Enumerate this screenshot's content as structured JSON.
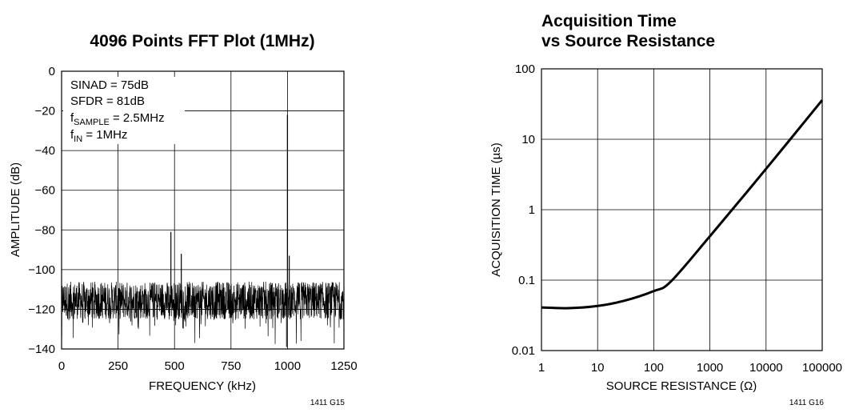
{
  "chart_data": [
    {
      "type": "line",
      "title": "4096 Points FFT Plot (1MHz)",
      "xlabel": "FREQUENCY (kHz)",
      "ylabel": "AMPLITUDE (dB)",
      "xlim": [
        0,
        1250
      ],
      "ylim": [
        -140,
        0
      ],
      "x_ticks": [
        "0",
        "250",
        "500",
        "750",
        "1000",
        "1250"
      ],
      "y_ticks": [
        "0",
        "−20",
        "−40",
        "−60",
        "−80",
        "−100",
        "−120",
        "−140"
      ],
      "grid": true,
      "annotations": {
        "sinad": "SINAD = 75dB",
        "sfdr": "SFDR = 81dB",
        "fsample_f": "f",
        "fsample_sub": "SAMPLE",
        "fsample_val": " = 2.5MHz",
        "fin_f": "f",
        "fin_sub": "IN",
        "fin_val": " = 1MHz"
      },
      "noise_floor_db": [
        -125,
        -106
      ],
      "spurs": [
        {
          "x": 484,
          "y": -81
        },
        {
          "x": 530,
          "y": -92
        },
        {
          "x": 1008,
          "y": -93
        }
      ],
      "fundamental": {
        "x": 1000,
        "y": -22
      },
      "figure_code": "1411 G15"
    },
    {
      "type": "line",
      "title_line1": "Acquisition Time",
      "title_line2": "vs Source Resistance",
      "xlabel": "SOURCE RESISTANCE (Ω)",
      "ylabel": "ACQUISITION TIME (µs)",
      "x_scale": "log",
      "y_scale": "log",
      "xlim": [
        1,
        100000
      ],
      "ylim": [
        0.01,
        100
      ],
      "x_ticks": [
        "1",
        "10",
        "100",
        "1000",
        "10000",
        "100000"
      ],
      "y_ticks": [
        "100",
        "10",
        "1",
        "0.1",
        "0.01"
      ],
      "grid": true,
      "x": [
        1,
        3,
        10,
        30,
        100,
        200,
        1000,
        10000,
        100000
      ],
      "y": [
        0.041,
        0.04,
        0.043,
        0.051,
        0.07,
        0.095,
        0.42,
        3.8,
        36
      ],
      "figure_code": "1411 G16"
    }
  ]
}
